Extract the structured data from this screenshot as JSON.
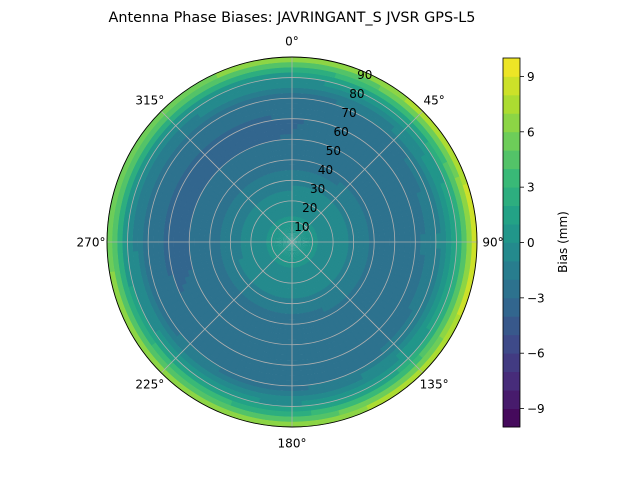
{
  "chart_data": {
    "type": "heatmap",
    "projection": "polar",
    "title": "Antenna Phase Biases: JAVRINGANT_S    JVSR GPS-L5",
    "angular_axis": {
      "zero_location": "N",
      "direction": "clockwise",
      "ticks": [
        0,
        45,
        90,
        135,
        180,
        225,
        270,
        315
      ],
      "tick_labels": [
        "0°",
        "45°",
        "90°",
        "135°",
        "180°",
        "225°",
        "270°",
        "315°"
      ]
    },
    "radial_axis": {
      "label": "",
      "range": [
        0,
        90
      ],
      "ticks": [
        10,
        20,
        30,
        40,
        50,
        60,
        70,
        80,
        90
      ],
      "tick_labels": [
        "10",
        "20",
        "30",
        "40",
        "50",
        "60",
        "70",
        "80",
        "90"
      ]
    },
    "grid": true,
    "colorbar": {
      "label": "Bias (mm)",
      "colormap": "viridis",
      "range": [
        -10,
        10
      ],
      "levels": 20,
      "ticks": [
        -9,
        -6,
        -3,
        0,
        3,
        6,
        9
      ],
      "tick_labels": [
        "−9",
        "−6",
        "−3",
        "0",
        "3",
        "6",
        "9"
      ]
    },
    "bias_profile": {
      "description_units": "bias (mm) vs radial coordinate (zenith angle, deg)",
      "r": [
        0,
        10,
        20,
        30,
        40,
        50,
        60,
        70,
        80,
        85,
        90
      ],
      "bias": [
        0.3,
        0.1,
        -0.3,
        -1.4,
        -2.4,
        -2.9,
        -2.9,
        -2.3,
        0.5,
        4.0,
        7.5
      ]
    },
    "azimuthal_variation": {
      "description_units": "additional bias (mm) vs azimuth (deg), scaled by edge proximity",
      "azimuth": [
        0,
        45,
        90,
        135,
        180,
        225,
        270,
        315
      ],
      "delta": [
        -0.5,
        0.5,
        2.0,
        1.0,
        -0.3,
        0.0,
        -0.8,
        -0.8
      ]
    }
  }
}
